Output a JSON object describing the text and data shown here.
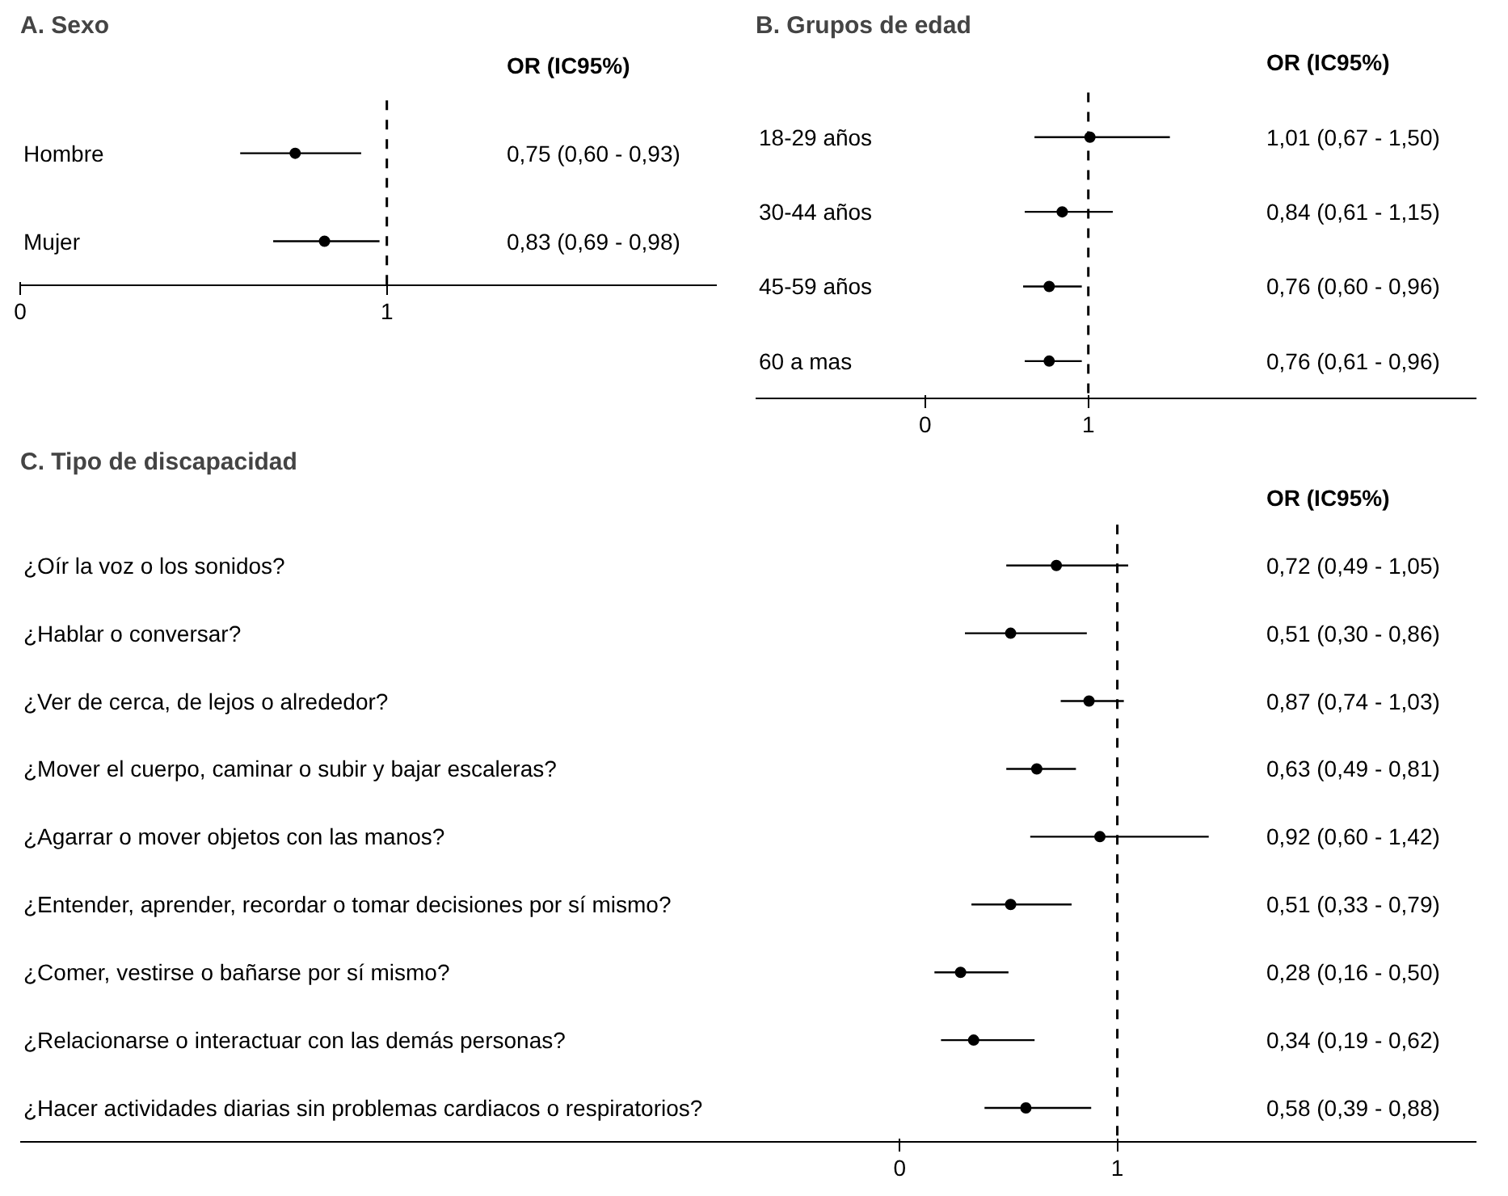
{
  "chart_data": [
    {
      "type": "scatter",
      "orientation": "horizontal",
      "title": "A. Sexo",
      "annotations": [
        "OR (IC95%)",
        "0,75 (0,60 - 0,93)",
        "0,83 (0,69 - 0,98)"
      ],
      "categories": [
        "Hombre",
        "Mujer"
      ],
      "values": [
        0.75,
        0.83
      ],
      "errors": [
        [
          0.6,
          0.93
        ],
        [
          0.69,
          0.98
        ]
      ],
      "color": "#000000",
      "marker": "circle",
      "xlim": [
        0,
        1.9
      ],
      "xticks": [
        0,
        1
      ],
      "ref_lines": [
        {
          "axis": "x",
          "value": 1,
          "line_style": "dashed",
          "color": "#000000"
        }
      ]
    },
    {
      "type": "scatter",
      "orientation": "horizontal",
      "title": "B. Grupos de edad",
      "annotations": [
        "OR (IC95%)",
        "1,01 (0,67 - 1,50)",
        "0,84 (0,61 - 1,15)",
        "0,76 (0,60 - 0,96)",
        "0,76 (0,61 - 0,96)"
      ],
      "categories": [
        "18-29 años",
        "30-44 años",
        "45-59 años",
        "60 a mas"
      ],
      "values": [
        1.01,
        0.84,
        0.76,
        0.76
      ],
      "errors": [
        [
          0.67,
          1.5
        ],
        [
          0.61,
          1.15
        ],
        [
          0.6,
          0.96
        ],
        [
          0.61,
          0.96
        ]
      ],
      "color": "#000000",
      "marker": "circle",
      "xlim": [
        -1.04,
        3.38
      ],
      "xticks": [
        0,
        1
      ],
      "ref_lines": [
        {
          "axis": "x",
          "value": 1,
          "line_style": "dashed",
          "color": "#000000"
        }
      ]
    },
    {
      "type": "scatter",
      "orientation": "horizontal",
      "title": "C. Tipo de discapacidad",
      "annotations": [
        "OR (IC95%)",
        "0,72 (0,49 - 1,05)",
        "0,51 (0,30 - 0,86)",
        "0,87 (0,74 - 1,03)",
        "0,63 (0,49 - 0,81)",
        "0,92 (0,60 - 1,42)",
        "0,51 (0,33 - 0,79)",
        "0,28 (0,16 - 0,50)",
        "0,34 (0,19 - 0,62)",
        "0,58 (0,39 - 0,88)"
      ],
      "categories": [
        "¿Oír la voz o los sonidos?",
        "¿Hablar o conversar?",
        "¿Ver de cerca, de lejos o alrededor?",
        "¿Mover el cuerpo, caminar o subir y bajar escaleras?",
        "¿Agarrar o mover objetos con las manos?",
        "¿Entender, aprender, recordar o tomar decisiones por sí mismo?",
        "¿Comer, vestirse o bañarse por sí mismo?",
        "¿Relacionarse o interactuar con las demás personas?",
        "¿Hacer actividades diarias sin problemas cardiacos o respiratorios?"
      ],
      "values": [
        0.72,
        0.51,
        0.87,
        0.63,
        0.92,
        0.51,
        0.28,
        0.34,
        0.58
      ],
      "errors": [
        [
          0.49,
          1.05
        ],
        [
          0.3,
          0.86
        ],
        [
          0.74,
          1.03
        ],
        [
          0.49,
          0.81
        ],
        [
          0.6,
          1.42
        ],
        [
          0.33,
          0.79
        ],
        [
          0.16,
          0.5
        ],
        [
          0.19,
          0.62
        ],
        [
          0.39,
          0.88
        ]
      ],
      "color": "#000000",
      "marker": "circle",
      "xlim": [
        -4.04,
        2.65
      ],
      "xticks": [
        0,
        1
      ],
      "ref_lines": [
        {
          "axis": "x",
          "value": 1,
          "line_style": "dashed",
          "color": "#000000"
        }
      ]
    }
  ]
}
